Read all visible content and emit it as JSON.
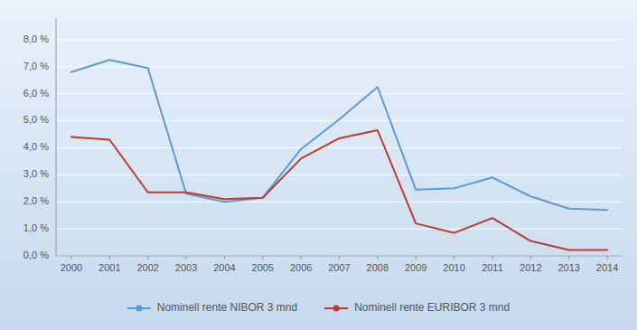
{
  "chart_data": {
    "type": "line",
    "x": [
      2000,
      2001,
      2002,
      2003,
      2004,
      2005,
      2006,
      2007,
      2008,
      2009,
      2010,
      2011,
      2012,
      2013,
      2014
    ],
    "series": [
      {
        "name": "Nominell rente NIBOR 3 mnd",
        "color": "#5B9BD5",
        "values": [
          0.068,
          0.0725,
          0.0695,
          0.023,
          0.02,
          0.0215,
          0.0395,
          0.0505,
          0.0625,
          0.0245,
          0.025,
          0.029,
          0.022,
          0.0175,
          0.017
        ]
      },
      {
        "name": "Nominell rente EURIBOR 3 mnd",
        "color": "#C0392B",
        "values": [
          0.044,
          0.043,
          0.0235,
          0.0235,
          0.021,
          0.0215,
          0.036,
          0.0435,
          0.0465,
          0.012,
          0.0085,
          0.014,
          0.0055,
          0.0022,
          0.0022
        ]
      }
    ],
    "xlim": [
      1999.6,
      2014.4
    ],
    "xticks": [
      2000,
      2001,
      2002,
      2003,
      2004,
      2005,
      2006,
      2007,
      2008,
      2009,
      2010,
      2011,
      2012,
      2013,
      2014
    ],
    "ylim": [
      0.0,
      0.088
    ],
    "yticks": [
      {
        "value": 0.0,
        "label": "0,0 %"
      },
      {
        "value": 0.01,
        "label": "1,0 %"
      },
      {
        "value": 0.02,
        "label": "2,0 %"
      },
      {
        "value": 0.03,
        "label": "3,0 %"
      },
      {
        "value": 0.04,
        "label": "4,0 %"
      },
      {
        "value": 0.05,
        "label": "5,0 %"
      },
      {
        "value": 0.06,
        "label": "6,0 %"
      },
      {
        "value": 0.07,
        "label": "7,0 %"
      },
      {
        "value": 0.08,
        "label": "8,0 %"
      }
    ],
    "grid": true,
    "legend": "bottom"
  }
}
